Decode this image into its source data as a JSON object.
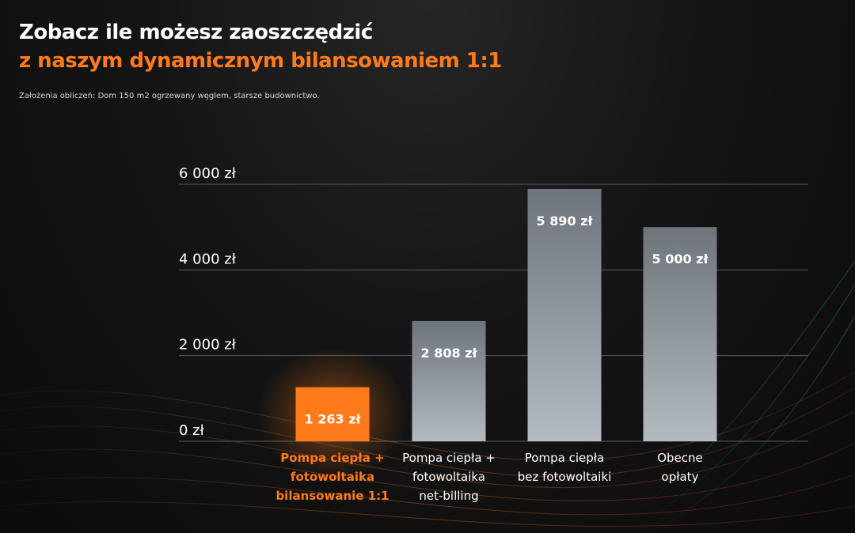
{
  "header": {
    "title_line1": "Zobacz ile możesz zaoszczędzić",
    "title_line2": "z naszym dynamicznym bilansowaniem 1:1",
    "assumptions": "Założenia obliczeń: Dom 150 m2 ogrzewany węglem, starsze budownictwo."
  },
  "colors": {
    "accent": "#ff7a1a",
    "bar_default": "#9aa1aa",
    "grid": "#5a5a5a",
    "text": "#ffffff"
  },
  "chart_data": {
    "type": "bar",
    "title": "",
    "xlabel": "",
    "ylabel": "",
    "ylim": [
      0,
      6000
    ],
    "ticks": [
      {
        "value": 0,
        "label": "0 zł"
      },
      {
        "value": 2000,
        "label": "2 000 zł"
      },
      {
        "value": 4000,
        "label": "4 000 zł"
      },
      {
        "value": 6000,
        "label": "6 000 zł"
      }
    ],
    "grid": true,
    "categories": [
      {
        "lines": [
          "Pompa ciepła +",
          "fotowoltaika",
          "bilansowanie 1:1"
        ],
        "highlight": true
      },
      {
        "lines": [
          "Pompa ciepła +",
          "fotowoltaika",
          "net-billing"
        ],
        "highlight": false
      },
      {
        "lines": [
          "Pompa ciepła",
          "bez fotowoltaiki"
        ],
        "highlight": false
      },
      {
        "lines": [
          "Obecne",
          "opłaty"
        ],
        "highlight": false
      }
    ],
    "values": [
      1263,
      2808,
      5890,
      5000
    ],
    "value_labels": [
      "1 263 zł",
      "2 808 zł",
      "5 890 zł",
      "5 000 zł"
    ]
  }
}
